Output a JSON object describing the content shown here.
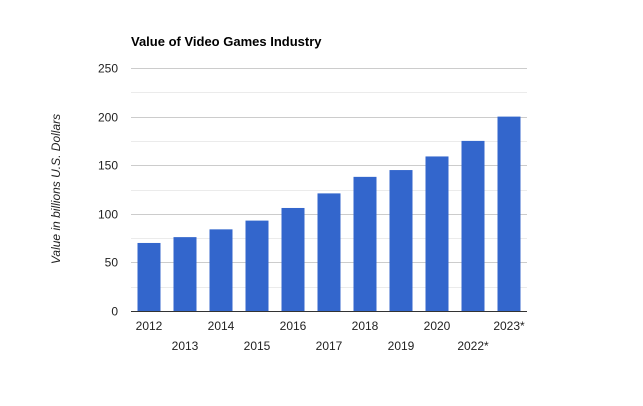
{
  "chart_data": {
    "type": "bar",
    "title": "Value of Video Games Industry",
    "xlabel": "",
    "ylabel": "Value in billions U.S. Dollars",
    "categories": [
      "2012",
      "2013",
      "2014",
      "2015",
      "2016",
      "2017",
      "2018",
      "2019",
      "2020",
      "2022*",
      "2023*"
    ],
    "values": [
      70,
      76,
      84,
      93,
      106,
      121,
      138,
      145,
      159,
      175,
      200
    ],
    "ylim": [
      0,
      250
    ],
    "yticks": [
      0,
      50,
      100,
      150,
      200,
      250
    ],
    "grid": true,
    "bar_color": "#3366cc",
    "grid_color": "#cccccc",
    "minor_grid_color": "#ebebeb",
    "axis_color": "#333333",
    "legend": "none"
  }
}
